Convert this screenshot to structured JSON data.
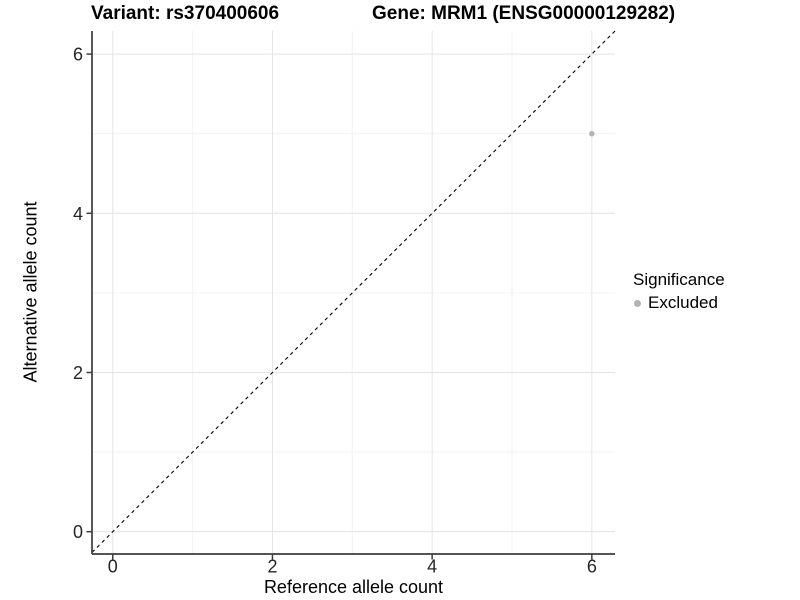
{
  "chart_data": {
    "type": "scatter",
    "title_variant": "Variant: rs370400606",
    "title_gene": "Gene: MRM1 (ENSG00000129282)",
    "xlabel": "Reference allele count",
    "ylabel": "Alternative allele count",
    "xlim": [
      -0.26,
      6.29
    ],
    "ylim": [
      -0.28,
      6.29
    ],
    "xticks": [
      0,
      2,
      4,
      6
    ],
    "yticks": [
      0,
      2,
      4,
      6
    ],
    "xminor": [
      1,
      3,
      5
    ],
    "yminor": [
      1,
      3,
      5
    ],
    "grid": "major+minor",
    "legend_position": "right",
    "series": [
      {
        "name": "Excluded",
        "color": "#b3b3b3",
        "points": [
          {
            "x": 6,
            "y": 5
          }
        ]
      }
    ],
    "reference_line": {
      "type": "identity",
      "equation": "y = x",
      "style": "dashed",
      "color": "#000000"
    },
    "colors": {
      "grid_major": "#e4e4e4",
      "grid_minor": "#f2f2f2",
      "axis_line": "#3d3d3d",
      "tick_text": "#262626",
      "point_excluded": "#b3b3b3"
    }
  },
  "legend": {
    "title": "Significance",
    "items": [
      {
        "label": "Excluded",
        "color": "#b3b3b3"
      }
    ]
  }
}
